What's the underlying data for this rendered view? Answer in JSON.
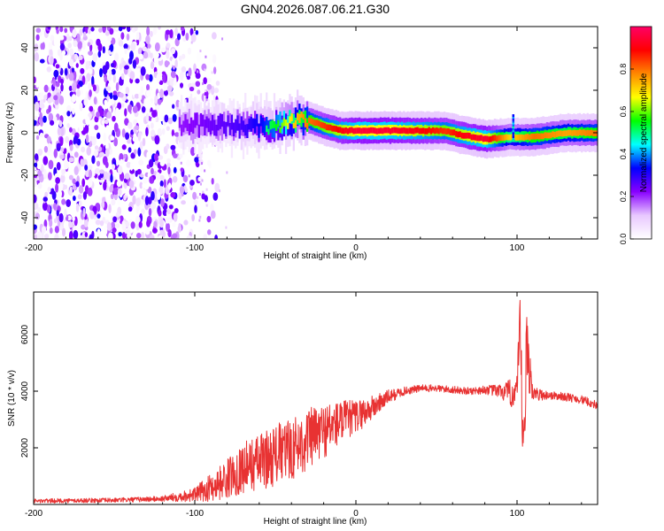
{
  "title": "GN04.2026.087.06.21.G30",
  "chart_data": [
    {
      "type": "heatmap",
      "xlabel": "Height of straight line (km)",
      "ylabel": "Frequency (Hz)",
      "xlim": [
        -200,
        150
      ],
      "ylim": [
        -50,
        50
      ],
      "x_ticks": [
        -200,
        -100,
        0,
        100
      ],
      "y_ticks": [
        -40,
        -20,
        0,
        20,
        40
      ],
      "colorbar": {
        "label": "Normalized spectral amplitude",
        "range": [
          0,
          1
        ],
        "ticks": [
          "0.0",
          "0.2",
          "0.4",
          "0.6",
          "0.8"
        ],
        "colors": [
          "#ffffff",
          "#e8c8ff",
          "#8800ff",
          "#0000ff",
          "#00ffff",
          "#00ff00",
          "#ffff00",
          "#ff8800",
          "#ff0000",
          "#ff0066"
        ]
      },
      "signal_ridge": {
        "x": [
          -110,
          -90,
          -70,
          -50,
          -40,
          -30,
          -20,
          -10,
          0,
          20,
          40,
          55,
          65,
          80,
          95,
          110,
          130,
          150
        ],
        "frequency_hz": [
          3,
          4,
          3,
          3,
          6,
          6,
          3,
          1,
          1,
          1,
          1,
          1,
          -1,
          -3,
          -2,
          -2,
          0,
          0
        ],
        "amplitude": [
          0.3,
          0.35,
          0.4,
          0.55,
          0.7,
          0.8,
          0.85,
          0.9,
          0.95,
          0.95,
          0.9,
          0.85,
          0.9,
          0.95,
          0.7,
          0.8,
          0.75,
          0.8
        ]
      },
      "noise_region": {
        "x_range": [
          -200,
          -95
        ],
        "note": "broadband scattered noise"
      }
    },
    {
      "type": "line",
      "xlabel": "Height of straight line (km)",
      "ylabel": "SNR (10 * v/v)",
      "xlim": [
        -200,
        150
      ],
      "ylim": [
        0,
        7500
      ],
      "x_ticks": [
        -200,
        -100,
        0,
        100
      ],
      "y_ticks": [
        2000,
        4000,
        6000
      ],
      "color": "#e83232",
      "series": [
        {
          "name": "SNR",
          "x": [
            -200,
            -150,
            -120,
            -100,
            -90,
            -80,
            -70,
            -60,
            -50,
            -40,
            -30,
            -20,
            -10,
            0,
            10,
            20,
            30,
            40,
            50,
            60,
            70,
            80,
            90,
            95,
            100,
            102,
            104,
            106,
            110,
            120,
            130,
            140,
            150
          ],
          "y": [
            120,
            150,
            200,
            350,
            600,
            900,
            1300,
            1500,
            1750,
            1950,
            2300,
            2600,
            2900,
            3100,
            3400,
            3800,
            4000,
            4100,
            4100,
            4050,
            4000,
            4050,
            4000,
            3900,
            4000,
            6000,
            1500,
            5500,
            3900,
            3850,
            3800,
            3700,
            3500
          ],
          "noise_amplitude": [
            80,
            80,
            100,
            250,
            500,
            700,
            900,
            1000,
            1100,
            1100,
            1100,
            1000,
            800,
            600,
            450,
            250,
            150,
            130,
            130,
            130,
            130,
            150,
            250,
            500,
            600,
            1500,
            1200,
            1500,
            250,
            150,
            150,
            150,
            150
          ]
        }
      ]
    }
  ]
}
